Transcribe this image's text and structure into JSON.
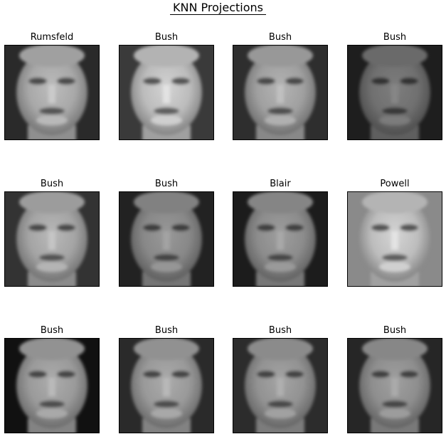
{
  "figure": {
    "title": "KNN Projections"
  },
  "panels": [
    {
      "label": "Rumsfeld",
      "tone": "#a8a8a8",
      "bg": "#2a2a2a"
    },
    {
      "label": "Bush",
      "tone": "#bcbcbc",
      "bg": "#3a3a3a"
    },
    {
      "label": "Bush",
      "tone": "#a0a0a0",
      "bg": "#2e2e2e"
    },
    {
      "label": "Bush",
      "tone": "#707070",
      "bg": "#1e1e1e"
    },
    {
      "label": "Bush",
      "tone": "#a4a4a4",
      "bg": "#333333"
    },
    {
      "label": "Bush",
      "tone": "#888888",
      "bg": "#222222"
    },
    {
      "label": "Blair",
      "tone": "#8c8c8c",
      "bg": "#1c1c1c"
    },
    {
      "label": "Powell",
      "tone": "#bdbdbd",
      "bg": "#8a8a8a"
    },
    {
      "label": "Bush",
      "tone": "#9a9a9a",
      "bg": "#111111"
    },
    {
      "label": "Bush",
      "tone": "#999999",
      "bg": "#2a2a2a"
    },
    {
      "label": "Bush",
      "tone": "#929292",
      "bg": "#2c2c2c"
    },
    {
      "label": "Bush",
      "tone": "#8e8e8e",
      "bg": "#262626"
    }
  ]
}
